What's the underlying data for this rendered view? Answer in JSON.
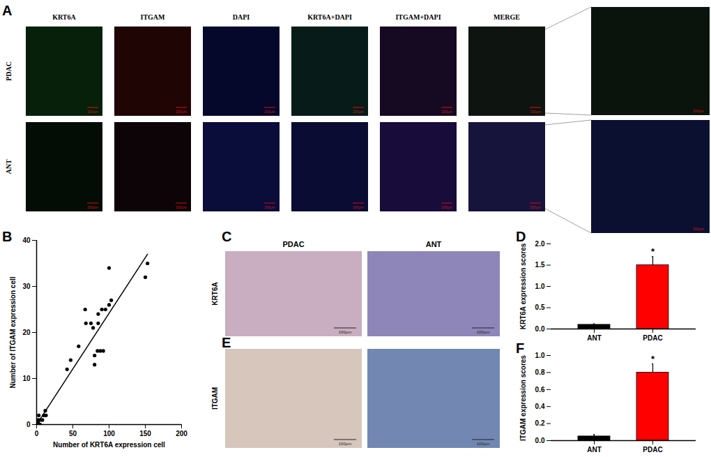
{
  "fluorescence": {
    "panel": "A",
    "columns": [
      "KRT6A",
      "ITGAM",
      "DAPI",
      "KRT6A+DAPI",
      "ITGAM+DAPI",
      "MERGE"
    ],
    "rows": [
      "PDAC",
      "ANT"
    ],
    "scale_bar": "200μm"
  },
  "ihc": {
    "panels": [
      "C",
      "E"
    ],
    "columns": [
      "PDAC",
      "ANT"
    ],
    "rows": [
      "KRT6A",
      "ITGAM"
    ],
    "scale_bar": "100μm"
  },
  "chart_data": [
    {
      "panel": "B",
      "type": "scatter",
      "x_label": "Number of KRT6A expression cell",
      "y_label": "Number of ITGAM expression cell",
      "x": [
        0,
        2,
        3,
        5,
        5,
        8,
        10,
        12,
        13,
        2,
        42,
        47,
        58,
        67,
        68,
        75,
        78,
        80,
        80,
        84,
        85,
        85,
        88,
        90,
        92,
        95,
        100,
        100,
        103,
        150,
        153
      ],
      "values": [
        0,
        1,
        2,
        1,
        0,
        1,
        2,
        3,
        2,
        0.5,
        12,
        14,
        17,
        25,
        22,
        22,
        21,
        15,
        13,
        16,
        22,
        24,
        16,
        25,
        16,
        25,
        26,
        34,
        27,
        32,
        35
      ],
      "color": "#000000",
      "xlim": [
        0,
        200
      ],
      "xticks": [
        0,
        50,
        100,
        150,
        200
      ],
      "ylim": [
        0,
        40
      ],
      "yticks": [
        0,
        10,
        20,
        30,
        40
      ],
      "fit_line": {
        "x": [
          0,
          153
        ],
        "y": [
          0,
          37
        ]
      }
    },
    {
      "panel": "D",
      "type": "bar",
      "y_label": "KRT6A expression scores",
      "categories": [
        "ANT",
        "PDAC"
      ],
      "values": [
        0.1,
        1.5
      ],
      "errors": [
        0.02,
        0.2
      ],
      "colors": [
        "#000000",
        "#ff0000"
      ],
      "ylim": [
        0,
        2
      ],
      "yticks": [
        {
          "value": 0,
          "label": "0.0"
        },
        {
          "value": 0.5,
          "label": "0.5"
        },
        {
          "value": 1,
          "label": "1.0"
        },
        {
          "value": 1.5,
          "label": "1.5"
        },
        {
          "value": 2,
          "label": "2.0"
        }
      ],
      "annotations": [
        {
          "category": "PDAC",
          "text": "*"
        }
      ]
    },
    {
      "panel": "F",
      "type": "bar",
      "y_label": "ITGAM expression scores",
      "categories": [
        "ANT",
        "PDAC"
      ],
      "values": [
        0.05,
        0.8
      ],
      "errors": [
        0.02,
        0.1
      ],
      "colors": [
        "#000000",
        "#ff0000"
      ],
      "ylim": [
        0,
        1
      ],
      "yticks": [
        {
          "value": 0,
          "label": "0.0"
        },
        {
          "value": 0.2,
          "label": "0.2"
        },
        {
          "value": 0.4,
          "label": "0.4"
        },
        {
          "value": 0.6,
          "label": "0.6"
        },
        {
          "value": 0.8,
          "label": "0.8"
        },
        {
          "value": 1,
          "label": "1.0"
        }
      ],
      "annotations": [
        {
          "category": "PDAC",
          "text": "*"
        }
      ]
    }
  ]
}
